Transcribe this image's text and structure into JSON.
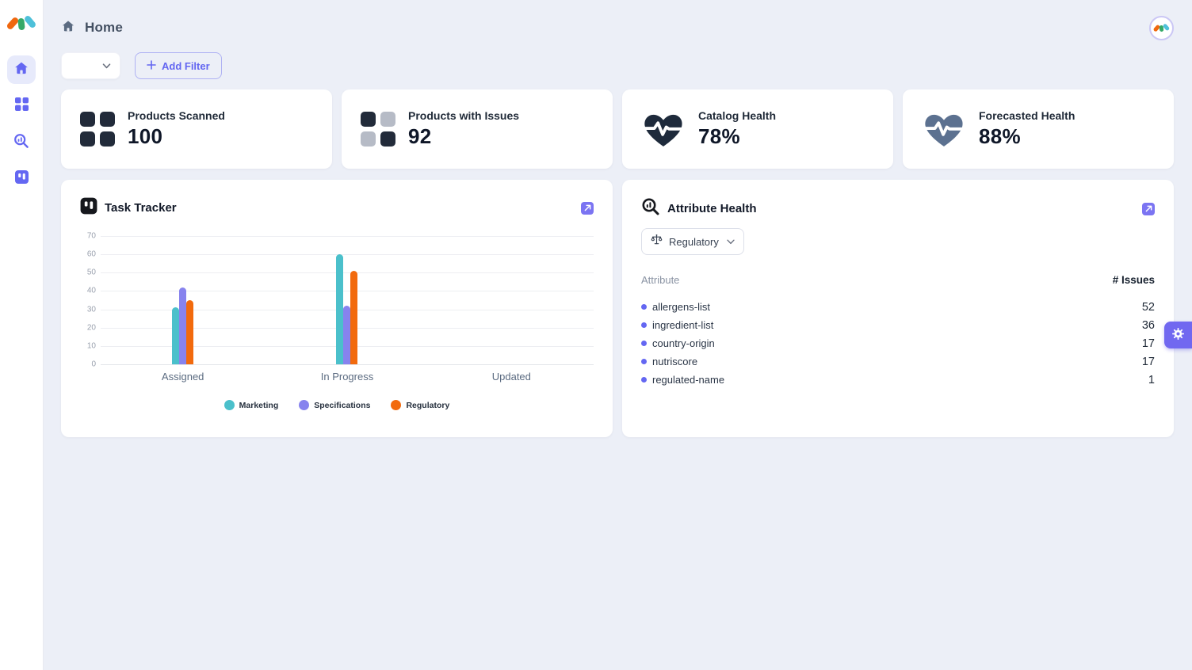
{
  "brand": {
    "logo_colors": {
      "left": "#F0670E",
      "middle": "#35A967",
      "right": "#4EC0D9"
    },
    "accent": "#6467F2"
  },
  "header": {
    "title": "Home"
  },
  "filter_bar": {
    "dropdown_value": "",
    "add_filter_label": "Add Filter"
  },
  "stats": [
    {
      "label": "Products Scanned",
      "value": "100",
      "icon": "grid-squares-dark"
    },
    {
      "label": "Products with Issues",
      "value": "92",
      "icon": "grid-squares-checker"
    },
    {
      "label": "Catalog Health",
      "value": "78%",
      "icon": "heart-pulse-navy"
    },
    {
      "label": "Forecasted Health",
      "value": "88%",
      "icon": "heart-pulse-slate"
    }
  ],
  "stat_icon_colors": {
    "dark": "#222B3A",
    "gray": "#B6BBC6",
    "navy": "#1E2A3B",
    "slate": "#5C7190"
  },
  "task_tracker": {
    "title": "Task Tracker"
  },
  "chart_data": {
    "type": "bar",
    "title": "Task Tracker",
    "categories": [
      "Assigned",
      "In Progress",
      "Updated"
    ],
    "series": [
      {
        "name": "Marketing",
        "color": "#4BC0CB",
        "values": [
          31,
          60,
          0
        ]
      },
      {
        "name": "Specifications",
        "color": "#8783EE",
        "values": [
          42,
          32,
          0
        ]
      },
      {
        "name": "Regulatory",
        "color": "#F26A0D",
        "values": [
          35,
          51,
          0
        ]
      }
    ],
    "xlabel": "",
    "ylabel": "",
    "ylim": [
      0,
      70
    ],
    "ytick_step": 10,
    "grid": true,
    "legend_position": "bottom"
  },
  "attribute_health": {
    "title": "Attribute Health",
    "filter_value": "Regulatory",
    "col_attribute": "Attribute",
    "col_issues": "# Issues",
    "rows": [
      {
        "attribute": "allergens-list",
        "issues": "52"
      },
      {
        "attribute": "ingredient-list",
        "issues": "36"
      },
      {
        "attribute": "country-origin",
        "issues": "17"
      },
      {
        "attribute": "nutriscore",
        "issues": "17"
      },
      {
        "attribute": "regulated-name",
        "issues": "1"
      }
    ]
  }
}
